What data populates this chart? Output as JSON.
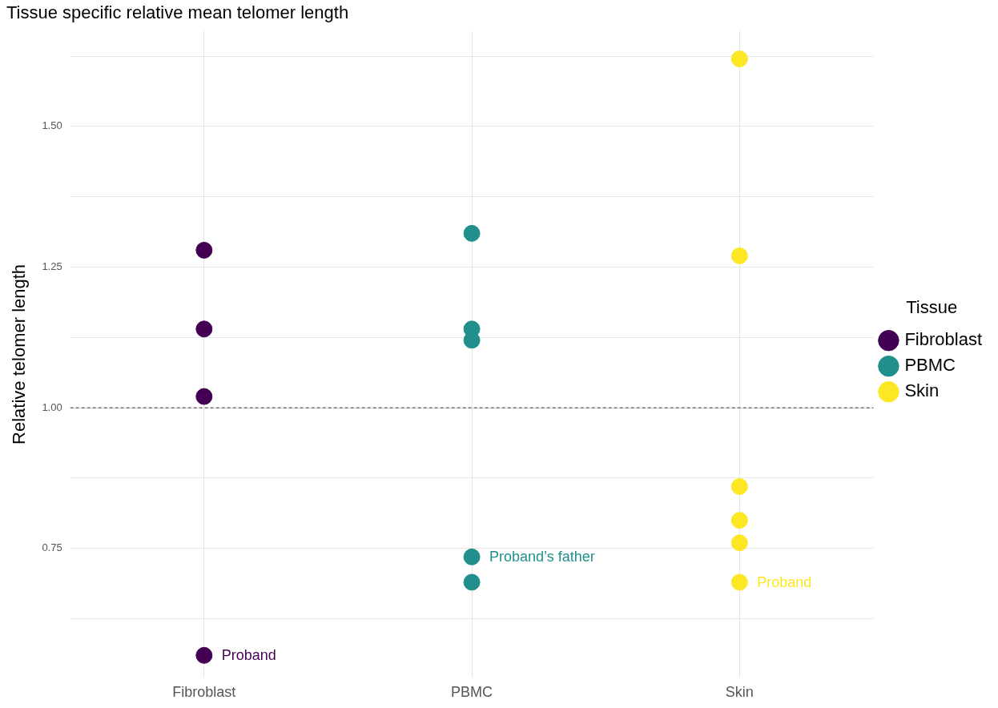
{
  "chart_data": {
    "type": "scatter",
    "title": "Tissue specific relative mean telomer length",
    "ylabel": "Relative telomer length",
    "legend_title": "Tissue",
    "categories": [
      "Fibroblast",
      "PBMC",
      "Skin"
    ],
    "series": [
      {
        "name": "Fibroblast",
        "color": "#440154",
        "x": [
          "Fibroblast",
          "Fibroblast",
          "Fibroblast",
          "Fibroblast"
        ],
        "values": [
          1.28,
          1.14,
          1.02,
          0.56
        ]
      },
      {
        "name": "PBMC",
        "color": "#21908c",
        "x": [
          "PBMC",
          "PBMC",
          "PBMC",
          "PBMC",
          "PBMC"
        ],
        "values": [
          1.31,
          1.14,
          1.12,
          0.735,
          0.69
        ]
      },
      {
        "name": "Skin",
        "color": "#fde725",
        "x": [
          "Skin",
          "Skin",
          "Skin",
          "Skin",
          "Skin",
          "Skin"
        ],
        "values": [
          1.62,
          1.27,
          0.86,
          0.8,
          0.76,
          0.69
        ]
      }
    ],
    "ylim": [
      0.52,
      1.67
    ],
    "yticks": [
      {
        "value": 0.625,
        "label": null
      },
      {
        "value": 0.75,
        "label": "0.75"
      },
      {
        "value": 0.875,
        "label": null
      },
      {
        "value": 1,
        "label": "1.00"
      },
      {
        "value": 1.125,
        "label": null
      },
      {
        "value": 1.25,
        "label": "1.25"
      },
      {
        "value": 1.375,
        "label": null
      },
      {
        "value": 1.5,
        "label": "1.50"
      },
      {
        "value": 1.625,
        "label": null
      }
    ],
    "ref_lines": [
      {
        "axis": "y",
        "value": 1,
        "label": null,
        "color": "#333333",
        "line_style": "dashed"
      }
    ],
    "annotations": [
      {
        "text": "Proband",
        "x": "Fibroblast",
        "y": 0.56
      },
      {
        "text": "Proband’s father",
        "x": "PBMC",
        "y": 0.735
      },
      {
        "text": "Proband",
        "x": "Skin",
        "y": 0.69
      }
    ],
    "grid": true,
    "legend": "right",
    "marker": "circle"
  }
}
